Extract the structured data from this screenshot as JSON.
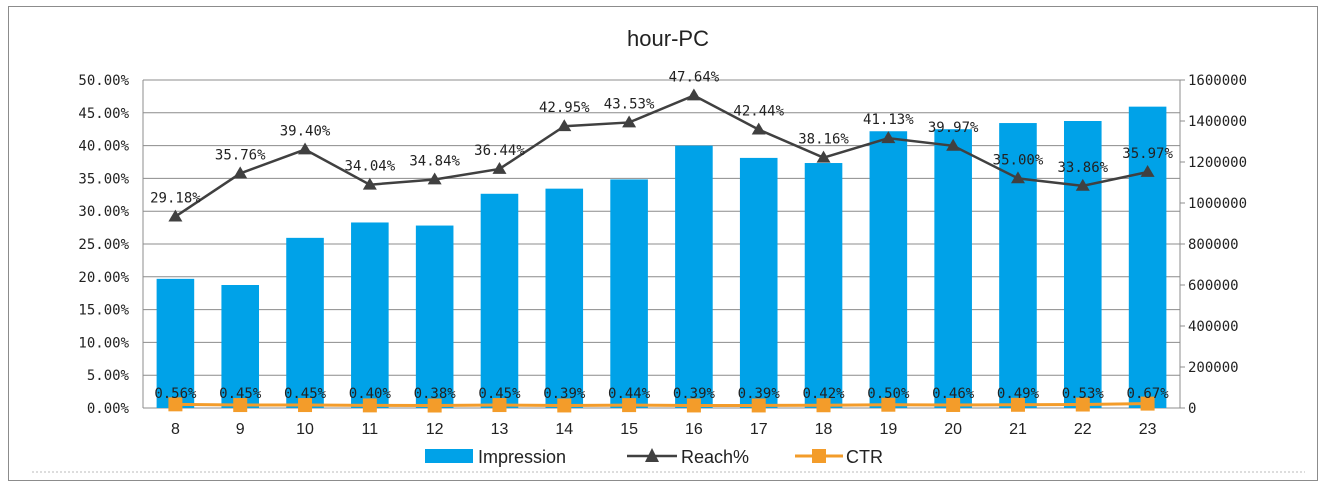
{
  "chart_data": {
    "type": "bar",
    "title": "hour-PC",
    "categories": [
      "8",
      "9",
      "10",
      "11",
      "12",
      "13",
      "14",
      "15",
      "16",
      "17",
      "18",
      "19",
      "20",
      "21",
      "22",
      "23"
    ],
    "series": [
      {
        "name": "Impression",
        "type": "bar",
        "axis": "right",
        "values": [
          630000,
          600000,
          830000,
          905000,
          890000,
          1045000,
          1070000,
          1115000,
          1280000,
          1220000,
          1195000,
          1350000,
          1360000,
          1390000,
          1400000,
          1470000
        ]
      },
      {
        "name": "Reach%",
        "type": "line",
        "axis": "left",
        "values": [
          0.2918,
          0.3576,
          0.394,
          0.3404,
          0.3484,
          0.3644,
          0.4295,
          0.4353,
          0.4764,
          0.4244,
          0.3816,
          0.4113,
          0.3997,
          0.35,
          0.3386,
          0.3597
        ],
        "labels": [
          "29.18%",
          "35.76%",
          "39.40%",
          "34.04%",
          "34.84%",
          "36.44%",
          "42.95%",
          "43.53%",
          "47.64%",
          "42.44%",
          "38.16%",
          "41.13%",
          "39.97%",
          "35.00%",
          "33.86%",
          "35.97%"
        ]
      },
      {
        "name": "CTR",
        "type": "line",
        "axis": "left",
        "values": [
          0.0056,
          0.0045,
          0.0045,
          0.004,
          0.0038,
          0.0045,
          0.0039,
          0.0044,
          0.0039,
          0.0039,
          0.0042,
          0.005,
          0.0046,
          0.0049,
          0.0053,
          0.0067
        ],
        "labels": [
          "0.56%",
          "0.45%",
          "0.45%",
          "0.40%",
          "0.38%",
          "0.45%",
          "0.39%",
          "0.44%",
          "0.39%",
          "0.39%",
          "0.42%",
          "0.50%",
          "0.46%",
          "0.49%",
          "0.53%",
          "0.67%"
        ]
      }
    ],
    "left_axis": {
      "ylim": [
        0,
        0.5
      ],
      "ticks": [
        "0.00%",
        "5.00%",
        "10.00%",
        "15.00%",
        "20.00%",
        "25.00%",
        "30.00%",
        "35.00%",
        "40.00%",
        "45.00%",
        "50.00%"
      ]
    },
    "right_axis": {
      "ylim": [
        0,
        1600000
      ],
      "ticks": [
        "0",
        "200000",
        "400000",
        "600000",
        "800000",
        "1000000",
        "1200000",
        "1400000",
        "1600000"
      ]
    },
    "grid": true,
    "legend_position": "bottom",
    "colors": {
      "bar": "#00a2e8",
      "reach": "#404040",
      "ctr": "#f39c2a",
      "grid": "#8c8c8c"
    }
  }
}
